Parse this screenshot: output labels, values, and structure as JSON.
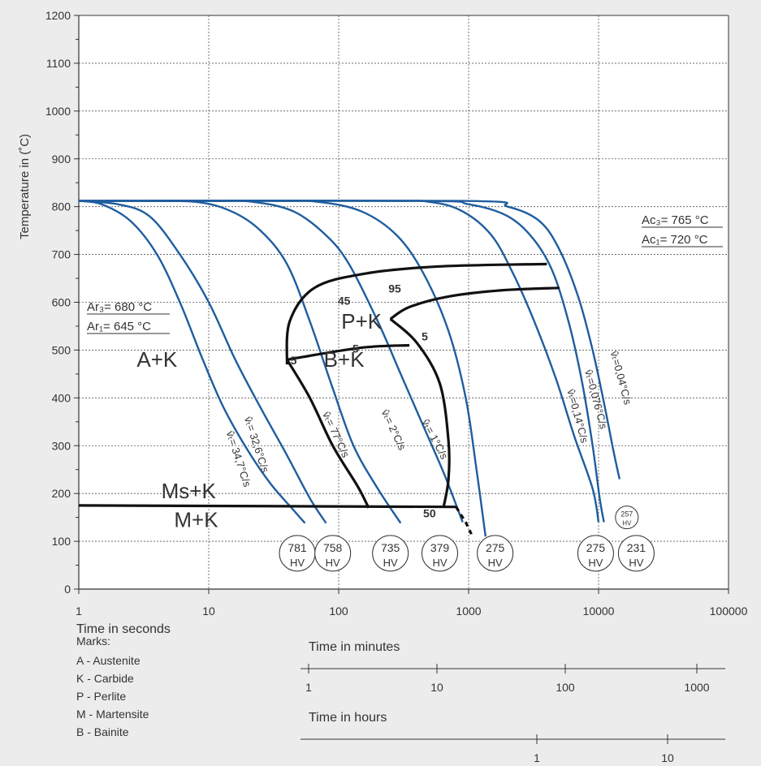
{
  "chart_data": {
    "type": "line",
    "title": "",
    "xlabel": "Time in seconds",
    "ylabel": "Temperature in (˚C)",
    "x_scale": "log",
    "xlim": [
      1,
      100000
    ],
    "ylim": [
      0,
      1200
    ],
    "x_ticks": [
      "1",
      "10",
      "100",
      "1000",
      "10000",
      "100000"
    ],
    "y_ticks": [
      "0",
      "100",
      "200",
      "300",
      "400",
      "500",
      "600",
      "700",
      "800",
      "900",
      "1000",
      "1100",
      "1200"
    ],
    "grid": true,
    "series_color": "#1f5d9e",
    "series": [
      {
        "points": [
          [
            1,
            812
          ],
          [
            1.5,
            805
          ],
          [
            2.5,
            770
          ],
          [
            4,
            700
          ],
          [
            6,
            600
          ],
          [
            9,
            480
          ],
          [
            13,
            380
          ],
          [
            20,
            290
          ],
          [
            30,
            220
          ],
          [
            45,
            165
          ],
          [
            55,
            138
          ]
        ],
        "rate_label": "v̂ₜ= 34,7°C/s",
        "hardness": "781 HV"
      },
      {
        "points": [
          [
            1,
            812
          ],
          [
            2,
            805
          ],
          [
            3.5,
            780
          ],
          [
            6,
            700
          ],
          [
            10,
            600
          ],
          [
            16,
            480
          ],
          [
            25,
            380
          ],
          [
            40,
            280
          ],
          [
            60,
            190
          ],
          [
            80,
            138
          ]
        ],
        "rate_label": "v̂ₜ= 32,6°C/s",
        "hardness": "758 HV"
      },
      {
        "points": [
          [
            1,
            812
          ],
          [
            3,
            812
          ],
          [
            8,
            810
          ],
          [
            15,
            790
          ],
          [
            25,
            750
          ],
          [
            40,
            680
          ],
          [
            60,
            560
          ],
          [
            90,
            420
          ],
          [
            130,
            300
          ],
          [
            200,
            210
          ],
          [
            300,
            138
          ]
        ],
        "rate_label": "v̂ₜ= 77°C/s",
        "hardness": "735 HV"
      },
      {
        "points": [
          [
            1,
            812
          ],
          [
            10,
            812
          ],
          [
            22,
            810
          ],
          [
            45,
            790
          ],
          [
            80,
            740
          ],
          [
            120,
            680
          ],
          [
            200,
            560
          ],
          [
            300,
            450
          ],
          [
            450,
            340
          ],
          [
            650,
            240
          ],
          [
            900,
            140
          ]
        ],
        "rate_label": "v̂ₜ= 2°C/s",
        "hardness": "379 HV"
      },
      {
        "points": [
          [
            1,
            812
          ],
          [
            30,
            812
          ],
          [
            70,
            810
          ],
          [
            150,
            790
          ],
          [
            280,
            740
          ],
          [
            450,
            660
          ],
          [
            700,
            540
          ],
          [
            950,
            400
          ],
          [
            1150,
            250
          ],
          [
            1350,
            110
          ]
        ],
        "rate_label": "v̂ₜ= 1°C/s",
        "hardness": "275 HV"
      },
      {
        "points": [
          [
            1,
            812
          ],
          [
            200,
            812
          ],
          [
            500,
            810
          ],
          [
            900,
            790
          ],
          [
            1500,
            740
          ],
          [
            2200,
            660
          ],
          [
            3200,
            560
          ],
          [
            4700,
            440
          ],
          [
            6500,
            320
          ],
          [
            9000,
            210
          ],
          [
            10000,
            140
          ]
        ],
        "rate_label": "v̂ₜ=0,14°C/s",
        "hardness": "275 HV"
      },
      {
        "points": [
          [
            1,
            812
          ],
          [
            400,
            812
          ],
          [
            1000,
            805
          ],
          [
            2000,
            780
          ],
          [
            3200,
            730
          ],
          [
            4500,
            660
          ],
          [
            6000,
            550
          ],
          [
            7500,
            430
          ],
          [
            9000,
            300
          ],
          [
            10200,
            190
          ],
          [
            11000,
            140
          ]
        ],
        "rate_label": "v̂ₜ=0,076°C/s",
        "hardness": ""
      },
      {
        "points": [
          [
            1,
            812
          ],
          [
            900,
            812
          ],
          [
            2000,
            800
          ],
          [
            3500,
            770
          ],
          [
            5000,
            710
          ],
          [
            7000,
            610
          ],
          [
            9000,
            500
          ],
          [
            11000,
            390
          ],
          [
            13000,
            290
          ],
          [
            14500,
            230
          ]
        ],
        "rate_label": "v̂ₜ=0,04°C/s",
        "hardness": "257 HV"
      }
    ],
    "transformation_lines": [
      {
        "points": [
          [
            40,
            470
          ],
          [
            42,
            560
          ],
          [
            65,
            630
          ],
          [
            160,
            660
          ],
          [
            600,
            675
          ],
          [
            4000,
            680
          ]
        ]
      },
      {
        "points": [
          [
            250,
            565
          ],
          [
            350,
            590
          ],
          [
            700,
            612
          ],
          [
            1800,
            625
          ],
          [
            5000,
            630
          ]
        ]
      },
      {
        "points": [
          [
            40,
            480
          ],
          [
            150,
            505
          ],
          [
            350,
            510
          ]
        ]
      },
      {
        "points": [
          [
            250,
            565
          ],
          [
            400,
            515
          ],
          [
            600,
            430
          ],
          [
            700,
            310
          ],
          [
            700,
            230
          ],
          [
            640,
            170
          ]
        ]
      },
      {
        "points": [
          [
            40,
            480
          ],
          [
            60,
            400
          ],
          [
            90,
            300
          ],
          [
            140,
            215
          ],
          [
            170,
            170
          ]
        ]
      },
      {
        "points": [
          [
            1,
            175
          ],
          [
            800,
            172
          ]
        ]
      }
    ],
    "dashed_line": {
      "points": [
        [
          800,
          172
        ],
        [
          950,
          140
        ],
        [
          1050,
          115
        ]
      ]
    },
    "hardness_circles": [
      {
        "x": 48,
        "y": 75,
        "text": "781 HV"
      },
      {
        "x": 90,
        "y": 75,
        "text": "758 HV"
      },
      {
        "x": 250,
        "y": 75,
        "text": "735 HV"
      },
      {
        "x": 600,
        "y": 75,
        "text": "379 HV"
      },
      {
        "x": 1600,
        "y": 75,
        "text": "275 HV"
      },
      {
        "x": 9500,
        "y": 75,
        "text": "275 HV"
      },
      {
        "x": 19500,
        "y": 75,
        "text": "231 HV"
      },
      {
        "x": 16500,
        "y": 150,
        "text": "257 HV"
      }
    ],
    "phase_labels": [
      {
        "text": "P+K",
        "x": 150,
        "y": 545
      },
      {
        "text": "B+K",
        "x": 110,
        "y": 465
      },
      {
        "text": "A+K",
        "x": 4,
        "y": 465
      },
      {
        "text": "Ms+K",
        "x": 7,
        "y": 190
      },
      {
        "text": "M+K",
        "x": 8,
        "y": 130
      }
    ],
    "percent_labels": [
      {
        "text": "95",
        "x": 270,
        "y": 620
      },
      {
        "text": "45",
        "x": 110,
        "y": 595
      },
      {
        "text": "5",
        "x": 460,
        "y": 520
      },
      {
        "text": "5",
        "x": 135,
        "y": 495
      },
      {
        "text": "5",
        "x": 45,
        "y": 470
      },
      {
        "text": "50",
        "x": 500,
        "y": 150
      }
    ],
    "ar_labels": [
      "Ar₃= 680 °C",
      "Ar₁= 645 °C"
    ],
    "ac_labels": [
      "Ac₃= 765 °C",
      "Ac₁= 720 °C"
    ]
  },
  "minutes_axis": {
    "title": "Time in minutes",
    "ticks": [
      "1",
      "10",
      "100",
      "1000"
    ]
  },
  "hours_axis": {
    "title": "Time in hours",
    "ticks": [
      "1",
      "10"
    ]
  },
  "marks": {
    "title": "Marks:",
    "items": [
      "A - Austenite",
      "K - Carbide",
      "P - Perlite",
      "M - Martensite",
      "B - Bainite"
    ]
  }
}
